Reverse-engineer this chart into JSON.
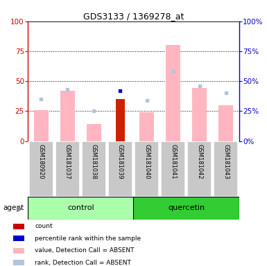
{
  "title": "GDS3133 / 1369278_at",
  "samples": [
    "GSM180920",
    "GSM181037",
    "GSM181038",
    "GSM181039",
    "GSM181040",
    "GSM181041",
    "GSM181042",
    "GSM181043"
  ],
  "pink_bars": [
    26,
    42,
    14,
    0,
    24,
    80,
    44,
    30
  ],
  "red_bars": [
    0,
    0,
    0,
    35,
    0,
    0,
    0,
    0
  ],
  "blue_squares_y": [
    null,
    null,
    null,
    42,
    null,
    null,
    null,
    null
  ],
  "light_blue_squares_y": [
    35,
    43,
    25,
    null,
    34,
    58,
    46,
    40
  ],
  "ylim": [
    0,
    100
  ],
  "yticks": [
    0,
    25,
    50,
    75,
    100
  ],
  "left_axis_color": "#CC0000",
  "right_axis_color": "#0000CC",
  "ctrl_color": "#AAFFAA",
  "quer_color": "#33CC33",
  "sample_bg": "#CCCCCC",
  "legend_items": [
    {
      "label": "count",
      "color": "#CC0000"
    },
    {
      "label": "percentile rank within the sample",
      "color": "#0000CC"
    },
    {
      "label": "value, Detection Call = ABSENT",
      "color": "#FFB6C1"
    },
    {
      "label": "rank, Detection Call = ABSENT",
      "color": "#B0C4DE"
    }
  ]
}
